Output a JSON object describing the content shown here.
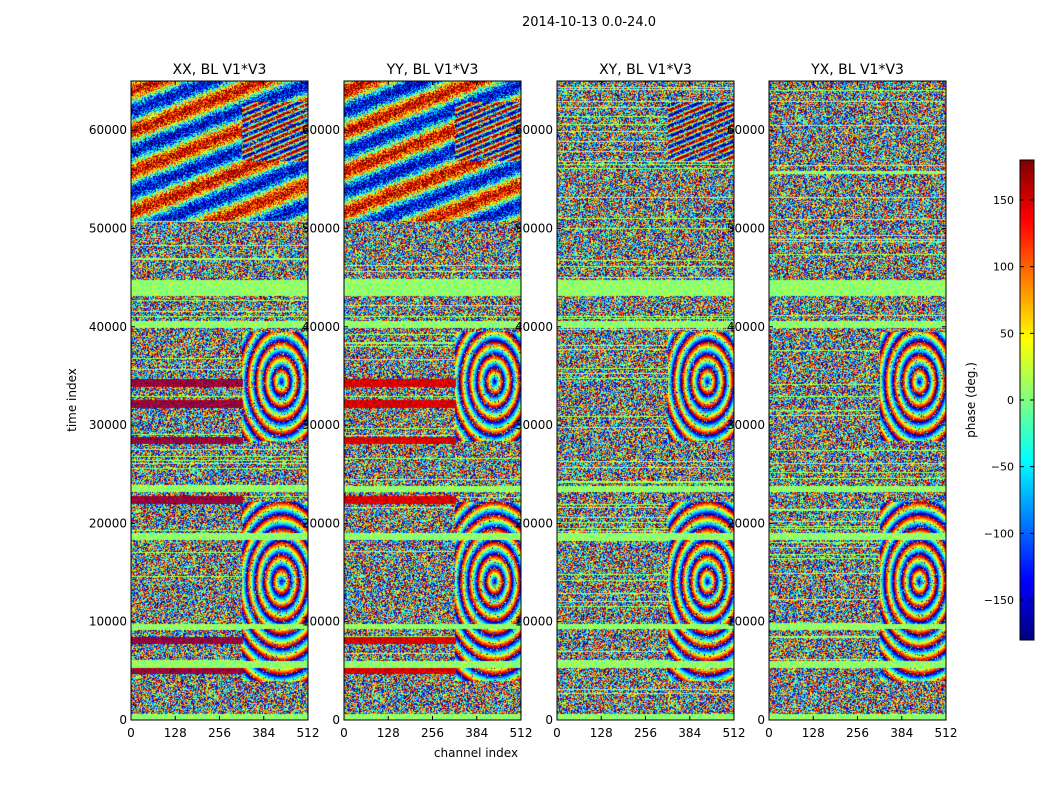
{
  "chart_data": {
    "type": "heatmap",
    "suptitle": "2014-10-13 0.0-24.0",
    "xlabel": "channel index",
    "ylabel": "time index",
    "xlim": [
      0,
      512
    ],
    "ylim": [
      0,
      65000
    ],
    "xticks": [
      0,
      128,
      256,
      384,
      512
    ],
    "yticks": [
      0,
      10000,
      20000,
      30000,
      40000,
      50000,
      60000
    ],
    "colorbar": {
      "label": "phase (deg.)",
      "range": [
        -180,
        180
      ],
      "ticks": [
        -150,
        -100,
        -50,
        0,
        50,
        100,
        150
      ],
      "tick_labels": [
        "−150",
        "−100",
        "−50",
        "0",
        "50",
        "100",
        "150"
      ],
      "stops": [
        "#00007f",
        "#0000ff",
        "#007fff",
        "#00ffff",
        "#7fff7f",
        "#ffff00",
        "#ff7f00",
        "#ff0000",
        "#7f0000"
      ]
    },
    "panels": [
      {
        "title": "XX, BL V1*V3"
      },
      {
        "title": "YY, BL V1*V3"
      },
      {
        "title": "XY, BL V1*V3"
      },
      {
        "title": "YX, BL V1*V3"
      }
    ]
  }
}
